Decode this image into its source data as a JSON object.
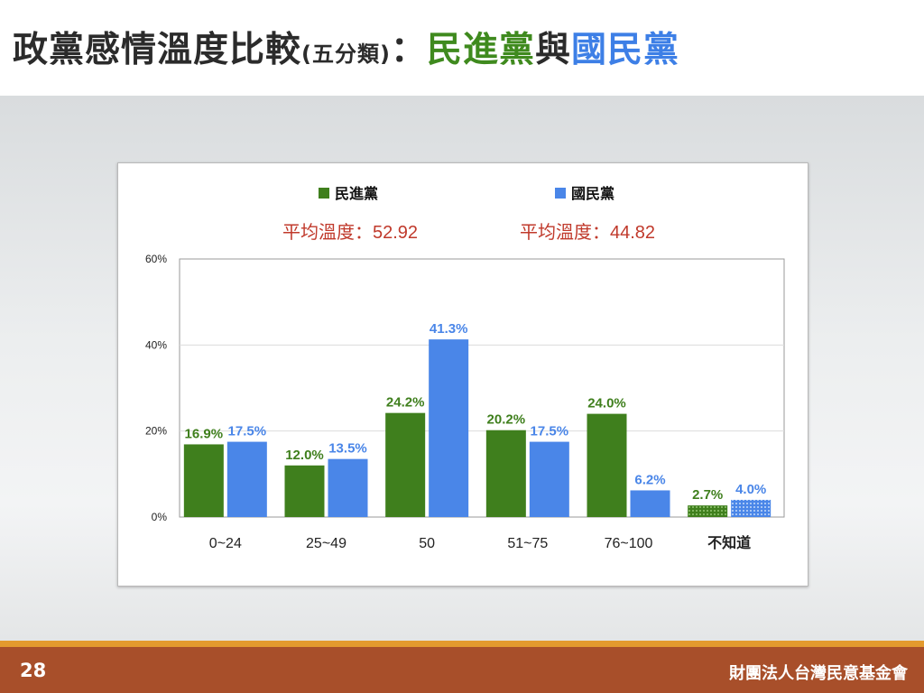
{
  "title": {
    "main": "政黨感情溫度比較",
    "sub": "(五分類)",
    "colon": "：",
    "party1": "民進黨",
    "conj": "與",
    "party2": "國民黨"
  },
  "colors": {
    "dpp": "#3f7f1d",
    "kmt": "#4a86e8",
    "avg_text": "#c0392b",
    "title_text": "#2b2b2b",
    "footer": "#a84f2a",
    "footer_stripe": "#e39a2e"
  },
  "chart_data": {
    "type": "bar",
    "categories": [
      "0~24",
      "25~49",
      "50",
      "51~75",
      "76~100",
      "不知道"
    ],
    "series": [
      {
        "name": "民進黨",
        "values": [
          16.9,
          12.0,
          24.2,
          20.2,
          24.0,
          2.7
        ],
        "value_labels": [
          "16.9%",
          "12.0%",
          "24.2%",
          "20.2%",
          "24.0%",
          "2.7%"
        ]
      },
      {
        "name": "國民黨",
        "values": [
          17.5,
          13.5,
          41.3,
          17.5,
          6.2,
          4.0
        ],
        "value_labels": [
          "17.5%",
          "13.5%",
          "41.3%",
          "17.5%",
          "6.2%",
          "4.0%"
        ]
      }
    ],
    "annotations": [
      "平均溫度：52.92",
      "平均溫度：44.82"
    ],
    "yticks": [
      "0%",
      "20%",
      "40%",
      "60%"
    ],
    "ylim": [
      0,
      60
    ],
    "legend_position": "top",
    "grid": true,
    "last_category_patterned": true
  },
  "footer": {
    "page_number": "28",
    "organization": "財團法人台灣民意基金會"
  }
}
